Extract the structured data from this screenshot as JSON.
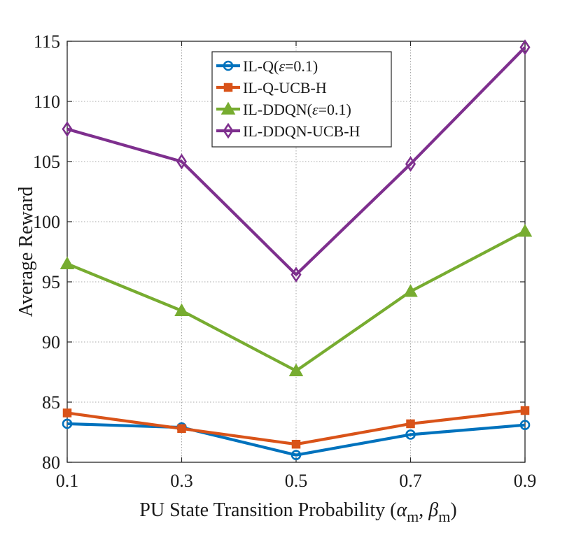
{
  "chart_data": {
    "type": "line",
    "title": "",
    "x": [
      0.1,
      0.3,
      0.5,
      0.7,
      0.9
    ],
    "x_tick_labels": [
      "0.1",
      "0.3",
      "0.5",
      "0.7",
      "0.9"
    ],
    "y_tick_labels": [
      "80",
      "85",
      "90",
      "95",
      "100",
      "105",
      "110",
      "115"
    ],
    "xlim": [
      0.1,
      0.9
    ],
    "ylim": [
      80,
      115
    ],
    "grid": true,
    "legend_position": "top-center",
    "xlabel": {
      "main": "PU State Transition Probability (",
      "alpha": "α",
      "alpha_sub": "m",
      "comma": ", ",
      "beta": "β",
      "beta_sub": "m",
      "close": ")"
    },
    "ylabel": "Average Reward",
    "series": [
      {
        "name": "IL-Q(ε=0.1)",
        "legend": {
          "pre": "IL-Q(",
          "eps": "ε",
          "post": "=0.1)"
        },
        "color": "#0072BD",
        "marker": "circle",
        "values": [
          83.2,
          82.9,
          80.6,
          82.3,
          83.1
        ]
      },
      {
        "name": "IL-Q-UCB-H",
        "legend": {
          "pre": "IL-Q-UCB-H",
          "eps": "",
          "post": ""
        },
        "color": "#D95319",
        "marker": "square",
        "values": [
          84.1,
          82.8,
          81.5,
          83.2,
          84.3
        ]
      },
      {
        "name": "IL-DDQN(ε=0.1)",
        "legend": {
          "pre": "IL-DDQN(",
          "eps": "ε",
          "post": "=0.1)"
        },
        "color": "#77AC30",
        "marker": "triangle",
        "values": [
          96.5,
          92.6,
          87.6,
          94.2,
          99.2
        ]
      },
      {
        "name": "IL-DDQN-UCB-H",
        "legend": {
          "pre": "IL-DDQN-UCB-H",
          "eps": "",
          "post": ""
        },
        "color": "#7E2F8E",
        "marker": "diamond",
        "values": [
          107.7,
          105.0,
          95.6,
          104.8,
          114.5
        ]
      }
    ]
  }
}
